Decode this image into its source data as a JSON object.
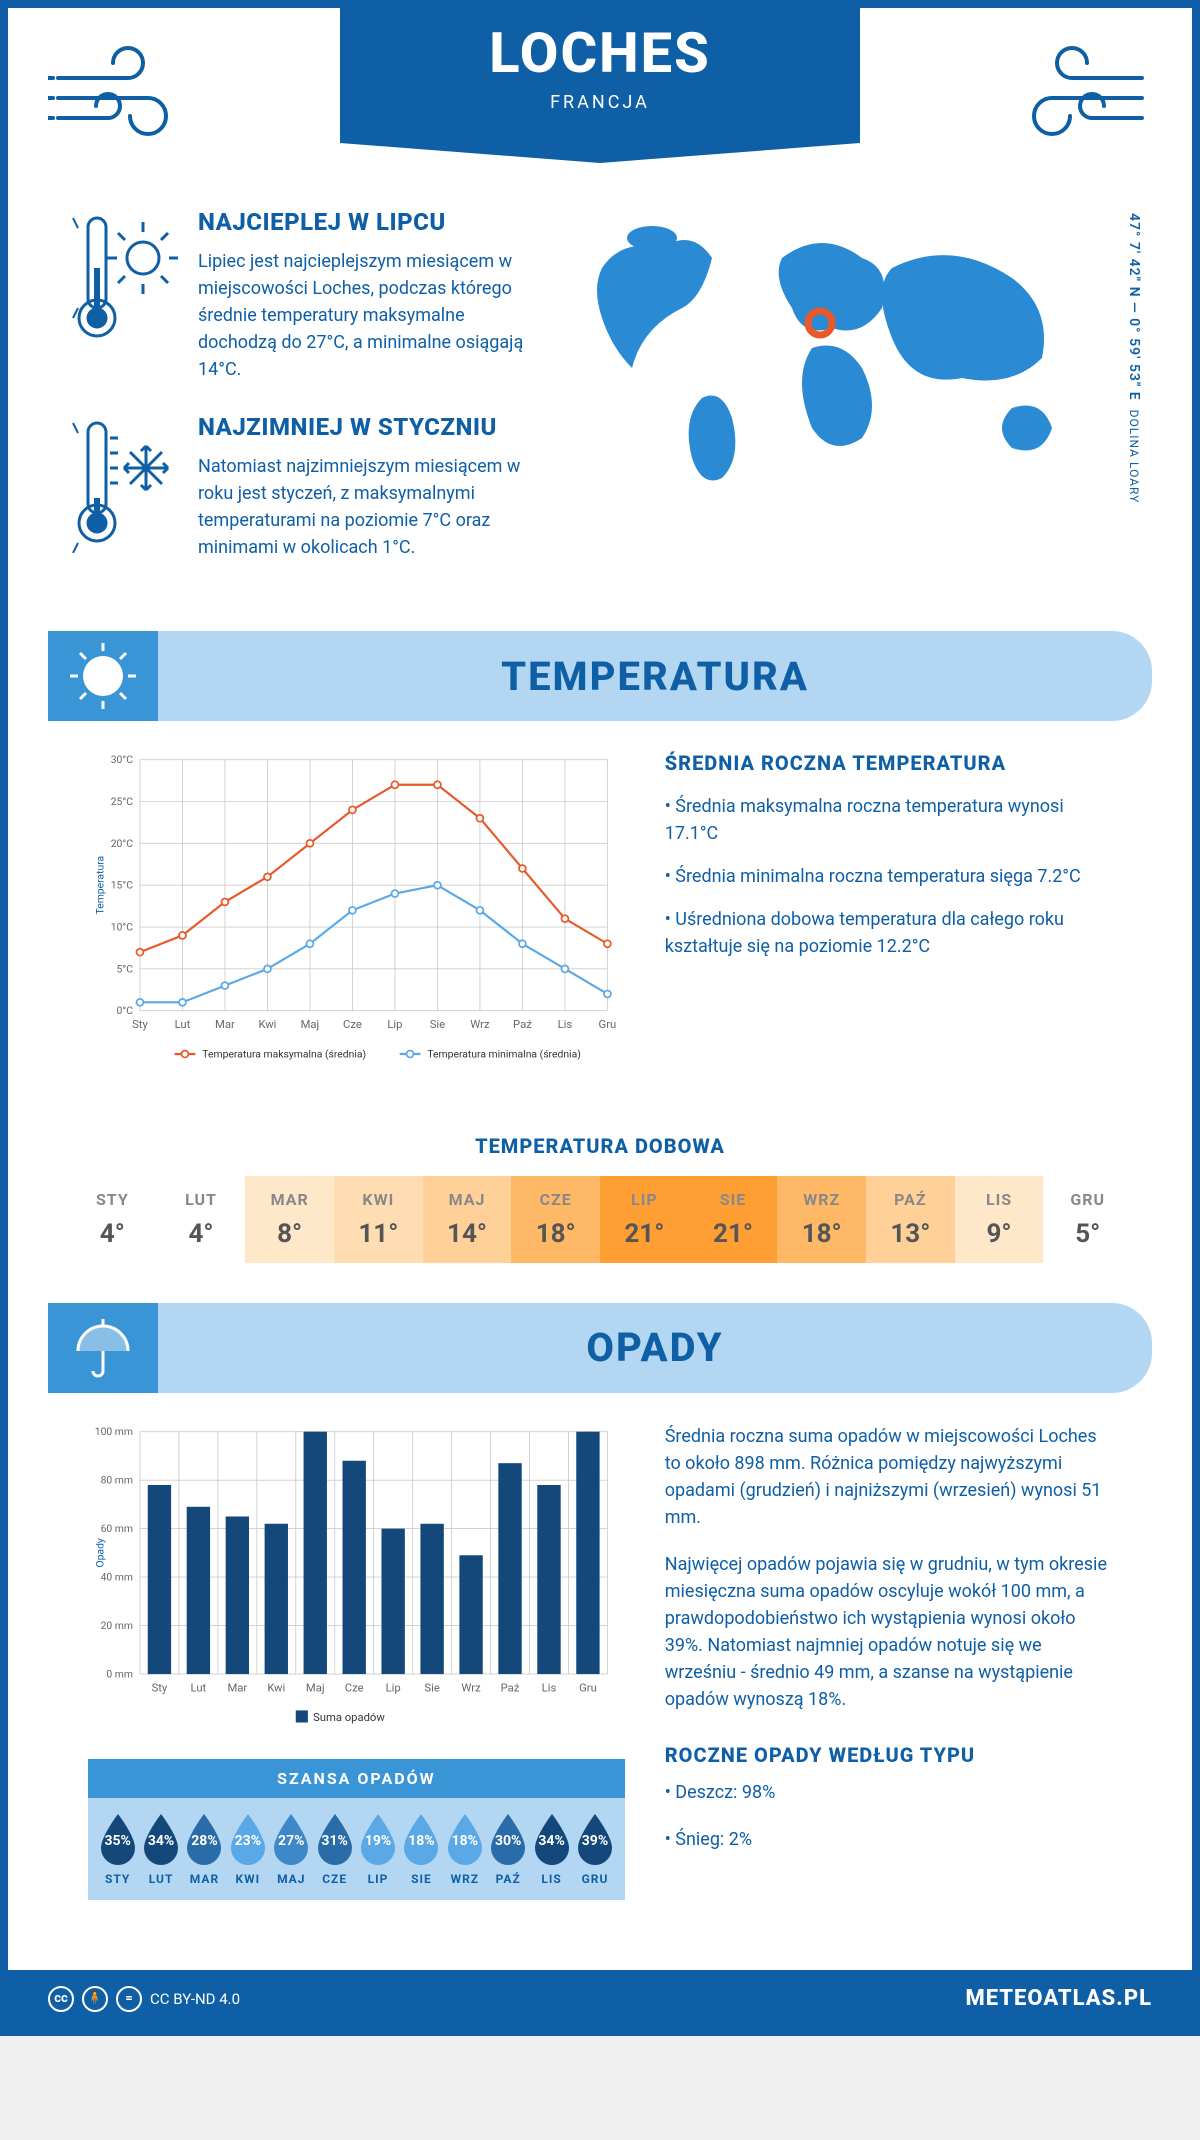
{
  "header": {
    "city": "LOCHES",
    "country": "FRANCJA"
  },
  "intro": {
    "hottest": {
      "title": "NAJCIEPLEJ W LIPCU",
      "text": "Lipiec jest najcieplejszym miesiącem w miejscowości Loches, podczas którego średnie temperatury maksymalne dochodzą do 27°C, a minimalne osiągają 14°C."
    },
    "coldest": {
      "title": "NAJZIMNIEJ W STYCZNIU",
      "text": "Natomiast najzimniejszym miesiącem w roku jest styczeń, z maksymalnymi temperaturami na poziomie 7°C oraz minimami w okolicach 1°C."
    },
    "coords": "47° 7' 42\" N — 0° 59' 53\" E",
    "region": "DOLINA LOARY"
  },
  "months": [
    "Sty",
    "Lut",
    "Mar",
    "Kwi",
    "Maj",
    "Cze",
    "Lip",
    "Sie",
    "Wrz",
    "Paź",
    "Lis",
    "Gru"
  ],
  "months_upper": [
    "STY",
    "LUT",
    "MAR",
    "KWI",
    "MAJ",
    "CZE",
    "LIP",
    "SIE",
    "WRZ",
    "PAŹ",
    "LIS",
    "GRU"
  ],
  "temperature": {
    "section_title": "TEMPERATURA",
    "y_label": "Temperatura",
    "ylim": [
      0,
      30
    ],
    "ytick_step": 5,
    "max_series": {
      "label": "Temperatura maksymalna (średnia)",
      "color": "#e8592a",
      "values": [
        7,
        9,
        13,
        16,
        20,
        24,
        27,
        27,
        23,
        17,
        11,
        8
      ]
    },
    "min_series": {
      "label": "Temperatura minimalna (średnia)",
      "color": "#5aa9e6",
      "values": [
        1,
        1,
        3,
        5,
        8,
        12,
        14,
        15,
        12,
        8,
        5,
        2
      ]
    },
    "facts_title": "ŚREDNIA ROCZNA TEMPERATURA",
    "facts": [
      "• Średnia maksymalna roczna temperatura wynosi 17.1°C",
      "• Średnia minimalna roczna temperatura sięga 7.2°C",
      "• Uśredniona dobowa temperatura dla całego roku kształtuje się na poziomie 12.2°C"
    ],
    "daily_title": "TEMPERATURA DOBOWA",
    "daily_values": [
      4,
      4,
      8,
      11,
      14,
      18,
      21,
      21,
      18,
      13,
      9,
      5
    ],
    "daily_colors": [
      "#ffffff",
      "#ffffff",
      "#ffe7ca",
      "#ffddb3",
      "#ffd199",
      "#ffb866",
      "#ff9e33",
      "#ff9e33",
      "#ffb866",
      "#ffd199",
      "#ffe7ca",
      "#ffffff"
    ]
  },
  "precip": {
    "section_title": "OPADY",
    "y_label": "Opady",
    "ylim": [
      0,
      100
    ],
    "ytick_step": 20,
    "bar_color": "#14487a",
    "series_label": "Suma opadów",
    "values": [
      78,
      69,
      65,
      62,
      100,
      88,
      60,
      62,
      49,
      87,
      78,
      100
    ],
    "text1": "Średnia roczna suma opadów w miejscowości Loches to około 898 mm. Różnica pomiędzy najwyższymi opadami (grudzień) i najniższymi (wrzesień) wynosi 51 mm.",
    "text2": "Najwięcej opadów pojawia się w grudniu, w tym okresie miesięczna suma opadów oscyluje wokół 100 mm, a prawdopodobieństwo ich wystąpienia wynosi około 39%. Natomiast najmniej opadów notuje się we wrześniu - średnio 49 mm, a szanse na wystąpienie opadów wynoszą 18%.",
    "type_title": "ROCZNE OPADY WEDŁUG TYPU",
    "type_facts": [
      "• Deszcz: 98%",
      "• Śnieg: 2%"
    ],
    "chance_title": "SZANSA OPADÓW",
    "chance_values": [
      35,
      34,
      28,
      23,
      27,
      31,
      19,
      18,
      18,
      30,
      34,
      39
    ],
    "chance_colors": [
      "#14487a",
      "#14487a",
      "#2a6ca8",
      "#5aa9e6",
      "#3d88c9",
      "#2a6ca8",
      "#5aa9e6",
      "#5aa9e6",
      "#5aa9e6",
      "#2a6ca8",
      "#14487a",
      "#14487a"
    ]
  },
  "footer": {
    "license": "CC BY-ND 4.0",
    "site": "METEOATLAS.PL"
  }
}
